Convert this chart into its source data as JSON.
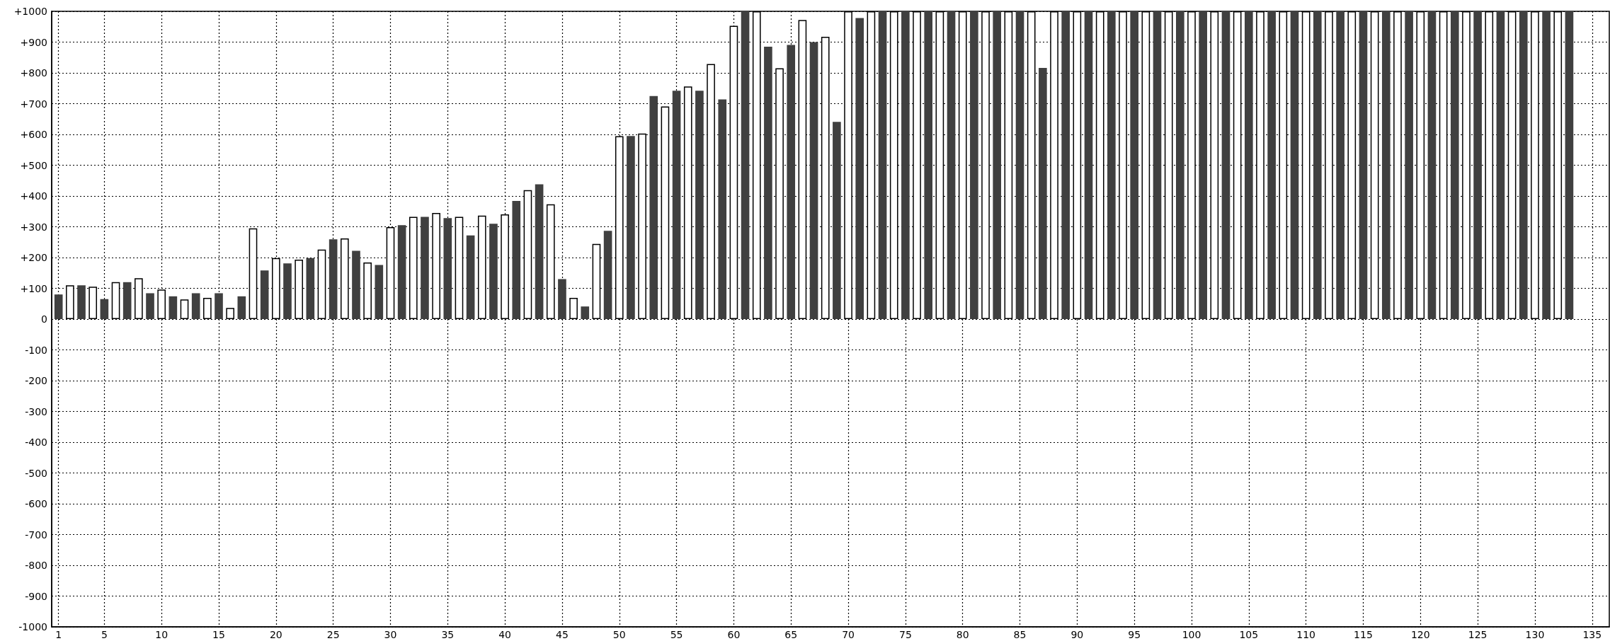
{
  "chart_data": {
    "type": "bar",
    "x": [
      1,
      2,
      3,
      4,
      5,
      6,
      7,
      8,
      9,
      10,
      11,
      12,
      13,
      14,
      15,
      16,
      17,
      18,
      19,
      20,
      21,
      22,
      23,
      24,
      25,
      26,
      27,
      28,
      29,
      30,
      31,
      32,
      33,
      34,
      35,
      36,
      37,
      38,
      39,
      40,
      41,
      42,
      43,
      44,
      45,
      46,
      47,
      48,
      49,
      50,
      51,
      52,
      53,
      54,
      55,
      56,
      57,
      58,
      59,
      60,
      61,
      62,
      63,
      64,
      65,
      66,
      67,
      68,
      69,
      70,
      71,
      72,
      73,
      74,
      75,
      76,
      77,
      78,
      79,
      80,
      81,
      82,
      83,
      84,
      85,
      86,
      87,
      88,
      89,
      90,
      91,
      92,
      93,
      94,
      95,
      96,
      97,
      98,
      99,
      100,
      101,
      102,
      103,
      104,
      105,
      106,
      107,
      108,
      109,
      110,
      111,
      112,
      113,
      114,
      115,
      116,
      117,
      118,
      119,
      120,
      121,
      122,
      123,
      124,
      125,
      126,
      127,
      128,
      129,
      130,
      131,
      132,
      133
    ],
    "values": [
      80,
      110,
      110,
      105,
      65,
      120,
      120,
      133,
      84,
      96,
      74,
      64,
      84,
      69,
      84,
      36,
      74,
      295,
      158,
      198,
      181,
      193,
      198,
      226,
      259,
      262,
      222,
      184,
      176,
      299,
      305,
      332,
      332,
      345,
      328,
      332,
      272,
      336,
      310,
      340,
      384,
      419,
      438,
      373,
      130,
      69,
      41,
      244,
      287,
      594,
      595,
      603,
      725,
      691,
      742,
      756,
      742,
      829,
      714,
      953,
      1000,
      1000,
      885,
      815,
      891,
      972,
      900,
      917,
      641,
      1000,
      978,
      1000,
      1000,
      1000,
      1000,
      1000,
      1000,
      1000,
      1000,
      1000,
      1000,
      1000,
      1000,
      1000,
      1000,
      1000,
      816,
      1000,
      1000,
      1000,
      1000,
      1000,
      1000,
      1000,
      1000,
      1000,
      1000,
      1000,
      1000,
      1000,
      1000,
      1000,
      1000,
      1000,
      1000,
      1000,
      1000,
      1000,
      1000,
      1000,
      1000,
      1000,
      1000,
      1000,
      1000,
      1000,
      1000,
      1000,
      1000,
      1000,
      1000,
      1000,
      1000,
      1000,
      1000,
      1000,
      1000,
      1000,
      1000,
      1000,
      1000,
      1000,
      1000
    ],
    "colors": [
      "#404040",
      "#ffffff",
      "#404040",
      "#ffffff",
      "#404040",
      "#ffffff",
      "#404040",
      "#ffffff",
      "#404040",
      "#ffffff",
      "#404040",
      "#ffffff",
      "#404040",
      "#ffffff",
      "#404040",
      "#ffffff",
      "#404040",
      "#ffffff",
      "#404040",
      "#ffffff",
      "#404040",
      "#ffffff",
      "#404040",
      "#ffffff",
      "#404040",
      "#ffffff",
      "#404040",
      "#ffffff",
      "#404040",
      "#ffffff",
      "#404040",
      "#ffffff",
      "#404040",
      "#ffffff",
      "#404040",
      "#ffffff",
      "#404040",
      "#ffffff",
      "#404040",
      "#ffffff",
      "#404040",
      "#ffffff",
      "#404040",
      "#ffffff",
      "#404040",
      "#ffffff",
      "#404040",
      "#ffffff",
      "#404040",
      "#ffffff",
      "#404040",
      "#ffffff",
      "#404040",
      "#ffffff",
      "#404040",
      "#ffffff",
      "#404040",
      "#ffffff",
      "#404040",
      "#ffffff",
      "#404040",
      "#ffffff",
      "#404040",
      "#ffffff",
      "#404040",
      "#ffffff",
      "#404040",
      "#ffffff",
      "#404040",
      "#ffffff",
      "#404040",
      "#ffffff",
      "#404040",
      "#ffffff",
      "#404040",
      "#ffffff",
      "#404040",
      "#ffffff",
      "#404040",
      "#ffffff",
      "#404040",
      "#ffffff",
      "#404040",
      "#ffffff",
      "#404040",
      "#ffffff",
      "#404040",
      "#ffffff",
      "#404040",
      "#ffffff",
      "#404040",
      "#ffffff",
      "#404040",
      "#ffffff",
      "#404040",
      "#ffffff",
      "#404040",
      "#ffffff",
      "#404040",
      "#ffffff",
      "#404040",
      "#ffffff",
      "#404040",
      "#ffffff",
      "#404040",
      "#ffffff",
      "#404040",
      "#ffffff",
      "#404040",
      "#ffffff",
      "#404040",
      "#ffffff",
      "#404040",
      "#ffffff",
      "#404040",
      "#ffffff",
      "#404040",
      "#ffffff",
      "#404040",
      "#ffffff",
      "#404040",
      "#ffffff",
      "#404040",
      "#ffffff",
      "#404040",
      "#ffffff",
      "#404040",
      "#ffffff",
      "#404040",
      "#ffffff",
      "#404040",
      "#ffffff",
      "#404040"
    ],
    "xlim": [
      0.4,
      136.5
    ],
    "xticks": [
      1,
      5,
      10,
      15,
      20,
      25,
      30,
      35,
      40,
      45,
      50,
      55,
      60,
      65,
      70,
      75,
      80,
      85,
      90,
      95,
      100,
      105,
      110,
      115,
      120,
      125,
      130,
      135
    ],
    "ylim": [
      -1000,
      1000
    ],
    "yticks": [
      {
        "value": -1000,
        "label": "-1000"
      },
      {
        "value": -900,
        "label": "-900"
      },
      {
        "value": -800,
        "label": "-800"
      },
      {
        "value": -700,
        "label": "-700"
      },
      {
        "value": -600,
        "label": "-600"
      },
      {
        "value": -500,
        "label": "-500"
      },
      {
        "value": -400,
        "label": "-400"
      },
      {
        "value": -300,
        "label": "-300"
      },
      {
        "value": -200,
        "label": "-200"
      },
      {
        "value": -100,
        "label": "-100"
      },
      0,
      {
        "value": 100,
        "label": "+100"
      },
      {
        "value": 200,
        "label": "+200"
      },
      {
        "value": 300,
        "label": "+300"
      },
      {
        "value": 400,
        "label": "+400"
      },
      {
        "value": 500,
        "label": "+500"
      },
      {
        "value": 600,
        "label": "+600"
      },
      {
        "value": 700,
        "label": "+700"
      },
      {
        "value": 800,
        "label": "+800"
      },
      {
        "value": 900,
        "label": "+900"
      },
      {
        "value": 1000,
        "label": "+1000"
      }
    ],
    "grid": true
  }
}
